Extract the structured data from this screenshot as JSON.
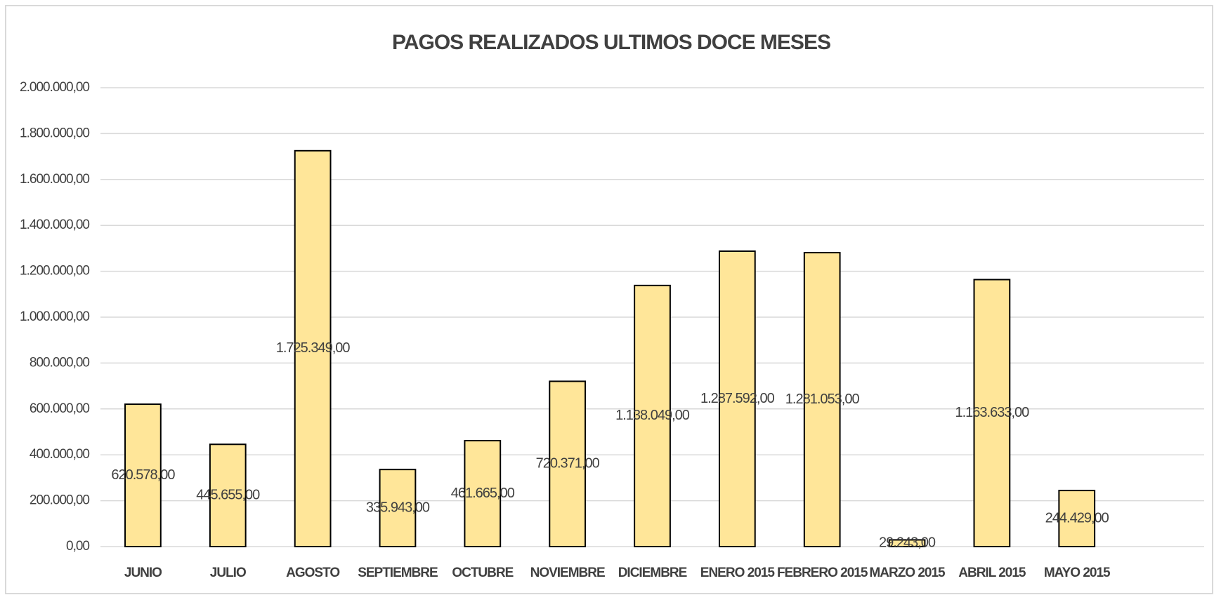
{
  "chart_data": {
    "type": "bar",
    "title": "PAGOS REALIZADOS ULTIMOS DOCE MESES",
    "categories": [
      "JUNIO",
      "JULIO",
      "AGOSTO",
      "SEPTIEMBRE",
      "OCTUBRE",
      "NOVIEMBRE",
      "DICIEMBRE",
      "ENERO 2015",
      "FEBRERO 2015",
      "MARZO 2015",
      "ABRIL 2015",
      "MAYO 2015",
      null
    ],
    "values": [
      620578,
      445655,
      1725349,
      335943,
      461665,
      720371,
      1138049,
      1287592,
      1281053,
      29243,
      1163633,
      244429,
      null
    ],
    "value_labels": [
      "620.578,00",
      "445.655,00",
      "1.725.349,00",
      "335.943,00",
      "461.665,00",
      "720.371,00",
      "1.138.049,00",
      "1.287.592,00",
      "1.281.053,00",
      "29.243,00",
      "1.163.633,00",
      "244.429,00",
      null
    ],
    "color": "#ffe699",
    "ylim": [
      0,
      2000000
    ],
    "yticks": [
      {
        "value": 0,
        "label": "0,00"
      },
      {
        "value": 200000,
        "label": "200.000,00"
      },
      {
        "value": 400000,
        "label": "400.000,00"
      },
      {
        "value": 600000,
        "label": "600.000,00"
      },
      {
        "value": 800000,
        "label": "800.000,00"
      },
      {
        "value": 1000000,
        "label": "1.000.000,00"
      },
      {
        "value": 1200000,
        "label": "1.200.000,00"
      },
      {
        "value": 1400000,
        "label": "1.400.000,00"
      },
      {
        "value": 1600000,
        "label": "1.600.000,00"
      },
      {
        "value": 1800000,
        "label": "1.800.000,00"
      },
      {
        "value": 2000000,
        "label": "2.000.000,00"
      }
    ],
    "grid": true
  }
}
